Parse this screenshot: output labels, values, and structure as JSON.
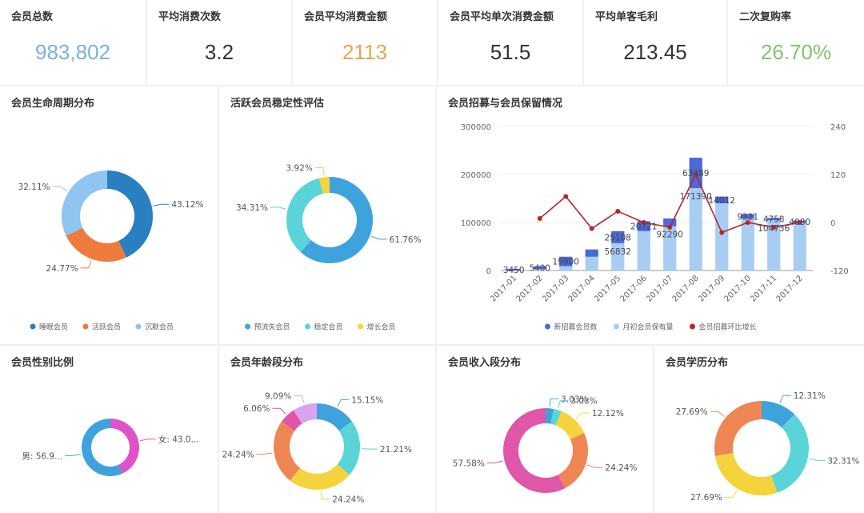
{
  "kpis": [
    {
      "label": "会员总数",
      "value": "983,802",
      "color": "#7bb1d8"
    },
    {
      "label": "平均消费次数",
      "value": "3.2",
      "color": "#333333"
    },
    {
      "label": "会员平均消费金额",
      "value": "2113",
      "color": "#e8a553"
    },
    {
      "label": "会员平均单次消费金额",
      "value": "51.5",
      "color": "#333333"
    },
    {
      "label": "平均单客毛利",
      "value": "213.45",
      "color": "#333333"
    },
    {
      "label": "二次复购率",
      "value": "26.70%",
      "color": "#80c46e"
    }
  ],
  "titles": {
    "lifecycle": "会员生命周期分布",
    "stability": "活跃会员稳定性评估",
    "recruit": "会员招募与会员保留情况",
    "gender": "会员性别比例",
    "age": "会员年龄段分布",
    "income": "会员收入段分布",
    "education": "会员学历分布"
  },
  "chart_data": [
    {
      "id": "lifecycle",
      "type": "pie",
      "slices": [
        {
          "name": "睡眠会员",
          "value": 43.12,
          "label": "43.12%",
          "color": "#2a7fc1"
        },
        {
          "name": "活跃会员",
          "value": 24.77,
          "label": "24.77%",
          "color": "#ee7a3c"
        },
        {
          "name": "沉默会员",
          "value": 32.11,
          "label": "32.11%",
          "color": "#90c4f1"
        }
      ]
    },
    {
      "id": "stability",
      "type": "pie",
      "slices": [
        {
          "name": "预流失会员",
          "value": 61.76,
          "label": "61.76%",
          "color": "#3ea3dd"
        },
        {
          "name": "稳定会员",
          "value": 34.31,
          "label": "34.31%",
          "color": "#5ad4d8"
        },
        {
          "name": "增长会员",
          "value": 3.92,
          "label": "3.92%",
          "color": "#f5d33d"
        }
      ]
    },
    {
      "id": "recruit",
      "type": "bar",
      "categories": [
        "2017-01",
        "2017-02",
        "2017-03",
        "2017-04",
        "2017-05",
        "2017-06",
        "2017-07",
        "2017-08",
        "2017-09",
        "2017-10",
        "2017-11",
        "2017-12"
      ],
      "series": [
        {
          "name": "新招募会员数",
          "color": "#4a69d6",
          "values": [
            3450,
            5400,
            19900,
            15000,
            25108,
            20721,
            16000,
            63489,
            14012,
            9321,
            4758,
            4080
          ],
          "labels": [
            "3450",
            "5400",
            "19900",
            "",
            "25108",
            "20721",
            "",
            "63489",
            "14012",
            "9321",
            "4758",
            "4080"
          ]
        },
        {
          "name": "月初会员保有量",
          "color": "#a8cdf2",
          "values": [
            0,
            3450,
            8850,
            28750,
            56832,
            82000,
            92290,
            171390,
            140000,
            108000,
            104736,
            100000
          ],
          "labels": [
            "",
            "",
            "",
            "",
            "56832",
            "",
            "92290",
            "171390",
            "",
            "",
            "104736",
            ""
          ]
        },
        {
          "name": "会员招募环比增长",
          "color": "#b8262b",
          "values": [
            null,
            10,
            65,
            -15,
            28,
            0,
            -12,
            120,
            -25,
            0,
            -12,
            0
          ]
        }
      ],
      "ylim": [
        0,
        300000
      ],
      "y_ticks": [
        "0",
        "100000",
        "200000",
        "300000"
      ],
      "y2lim": [
        -120,
        240
      ],
      "y2_ticks": [
        "-120",
        "0",
        "120",
        "240"
      ]
    },
    {
      "id": "gender",
      "type": "pie",
      "slices": [
        {
          "name": "女",
          "value": 43.05,
          "label": "女: 43.0...",
          "color": "#e053c8"
        },
        {
          "name": "男",
          "value": 56.95,
          "label": "男: 56.9...",
          "color": "#3ea3dd"
        }
      ]
    },
    {
      "id": "age",
      "type": "pie",
      "slices": [
        {
          "value": 15.15,
          "label": "15.15%",
          "color": "#3ea3dd"
        },
        {
          "value": 21.21,
          "label": "21.21%",
          "color": "#5ad4d8"
        },
        {
          "value": 24.24,
          "label": "24.24%",
          "color": "#f5d33d"
        },
        {
          "value": 24.24,
          "label": "24.24%",
          "color": "#ee8654"
        },
        {
          "value": 6.06,
          "label": "6.06%",
          "color": "#e053a8"
        },
        {
          "value": 9.09,
          "label": "9.09%",
          "color": "#d9a3f0"
        }
      ]
    },
    {
      "id": "income",
      "type": "pie",
      "slices": [
        {
          "value": 3.03,
          "label": "3.03%",
          "color": "#3ea3dd"
        },
        {
          "value": 3.03,
          "label": "3.03%",
          "color": "#5ad4d8"
        },
        {
          "value": 12.12,
          "label": "12.12%",
          "color": "#f5d33d"
        },
        {
          "value": 24.24,
          "label": "24.24%",
          "color": "#ee8654"
        },
        {
          "value": 57.58,
          "label": "57.58%",
          "color": "#e056a8"
        }
      ]
    },
    {
      "id": "education",
      "type": "pie",
      "slices": [
        {
          "value": 12.31,
          "label": "12.31%",
          "color": "#3ea3dd"
        },
        {
          "value": 32.31,
          "label": "32.31%",
          "color": "#5ad4d8"
        },
        {
          "value": 27.69,
          "label": "27.69%",
          "color": "#f5d33d"
        },
        {
          "value": 27.69,
          "label": "27.69%",
          "color": "#ee8654"
        }
      ]
    }
  ]
}
